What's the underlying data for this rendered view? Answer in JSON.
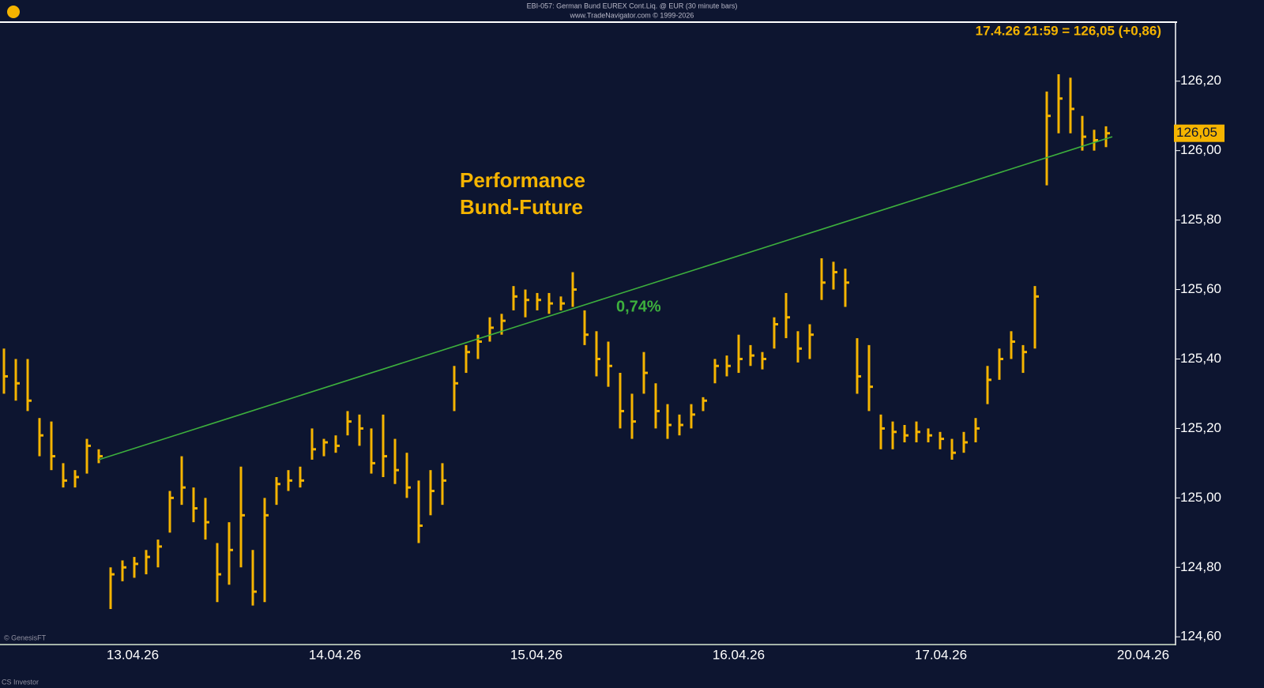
{
  "chart_data": {
    "type": "hlc",
    "title": "EBI-057:  German Bund EUREX Cont.Liq. @ EUR  (30 minute bars)",
    "subtitle": "www.TradeNavigator.com © 1999-2026",
    "header_quote": "17.4.26 21:59 = 126,05 (+0,86)",
    "annotation": "Performance\nBund-Future",
    "credit": "© GenesisFT",
    "footer": "CS Investor",
    "color": "#f5b400",
    "xtick_labels": [
      "13.04.26",
      "14.04.26",
      "15.04.26",
      "16.04.26",
      "17.04.26",
      "20.04.26"
    ],
    "ylim": [
      124.58,
      126.37
    ],
    "yticks": [
      {
        "value": 124.6,
        "label": "124,60"
      },
      {
        "value": 124.8,
        "label": "124,80"
      },
      {
        "value": 125.0,
        "label": "125,00"
      },
      {
        "value": 125.2,
        "label": "125,20"
      },
      {
        "value": 125.4,
        "label": "125,40"
      },
      {
        "value": 125.6,
        "label": "125,60"
      },
      {
        "value": 125.8,
        "label": "125,80"
      },
      {
        "value": 126.0,
        "label": "126,00"
      },
      {
        "value": 126.2,
        "label": "126,20"
      }
    ],
    "last_price": {
      "value": 126.05,
      "label": "126,05"
    },
    "trendline": {
      "values": [
        125.11,
        126.04
      ],
      "label": "0,74%",
      "color": "#3db03d"
    },
    "high": [
      125.43,
      125.4,
      125.4,
      125.23,
      125.22,
      125.1,
      125.08,
      125.17,
      125.14,
      124.8,
      124.82,
      124.83,
      124.85,
      124.88,
      125.02,
      125.12,
      125.03,
      125.0,
      124.87,
      124.93,
      125.09,
      124.85,
      125.0,
      125.06,
      125.08,
      125.09,
      125.2,
      125.17,
      125.18,
      125.25,
      125.24,
      125.2,
      125.24,
      125.17,
      125.13,
      125.05,
      125.08,
      125.1,
      125.38,
      125.44,
      125.47,
      125.52,
      125.53,
      125.61,
      125.6,
      125.59,
      125.59,
      125.58,
      125.65,
      125.54,
      125.48,
      125.45,
      125.36,
      125.3,
      125.42,
      125.33,
      125.27,
      125.24,
      125.27,
      125.29,
      125.4,
      125.41,
      125.47,
      125.44,
      125.42,
      125.52,
      125.59,
      125.48,
      125.5,
      125.69,
      125.68,
      125.66,
      125.46,
      125.44,
      125.24,
      125.22,
      125.21,
      125.22,
      125.2,
      125.19,
      125.17,
      125.19,
      125.23,
      125.38,
      125.43,
      125.48,
      125.44,
      125.61,
      126.17,
      126.22,
      126.21,
      126.1,
      126.06,
      126.07
    ],
    "low": [
      125.3,
      125.28,
      125.25,
      125.12,
      125.08,
      125.03,
      125.03,
      125.07,
      125.1,
      124.68,
      124.76,
      124.77,
      124.78,
      124.8,
      124.9,
      124.98,
      124.93,
      124.88,
      124.7,
      124.75,
      124.8,
      124.69,
      124.7,
      124.98,
      125.02,
      125.03,
      125.11,
      125.12,
      125.13,
      125.18,
      125.15,
      125.07,
      125.06,
      125.04,
      125.0,
      124.87,
      124.95,
      124.98,
      125.25,
      125.36,
      125.4,
      125.45,
      125.47,
      125.54,
      125.52,
      125.54,
      125.53,
      125.54,
      125.55,
      125.44,
      125.35,
      125.32,
      125.2,
      125.17,
      125.3,
      125.2,
      125.17,
      125.18,
      125.2,
      125.25,
      125.33,
      125.35,
      125.36,
      125.38,
      125.37,
      125.43,
      125.46,
      125.39,
      125.4,
      125.57,
      125.6,
      125.55,
      125.3,
      125.25,
      125.14,
      125.14,
      125.16,
      125.16,
      125.16,
      125.14,
      125.11,
      125.13,
      125.16,
      125.27,
      125.34,
      125.4,
      125.36,
      125.43,
      125.9,
      126.05,
      126.05,
      126.0,
      126.0,
      126.01
    ],
    "close": [
      125.35,
      125.33,
      125.28,
      125.18,
      125.12,
      125.05,
      125.06,
      125.15,
      125.12,
      124.78,
      124.8,
      124.81,
      124.83,
      124.86,
      125.0,
      125.03,
      124.97,
      124.93,
      124.78,
      124.85,
      124.95,
      124.73,
      124.95,
      125.04,
      125.05,
      125.05,
      125.14,
      125.16,
      125.15,
      125.22,
      125.2,
      125.1,
      125.12,
      125.08,
      125.03,
      124.92,
      125.02,
      125.05,
      125.33,
      125.42,
      125.45,
      125.49,
      125.51,
      125.58,
      125.57,
      125.57,
      125.56,
      125.56,
      125.6,
      125.47,
      125.4,
      125.38,
      125.25,
      125.22,
      125.36,
      125.25,
      125.21,
      125.21,
      125.24,
      125.28,
      125.38,
      125.38,
      125.4,
      125.41,
      125.4,
      125.5,
      125.52,
      125.43,
      125.47,
      125.62,
      125.65,
      125.62,
      125.35,
      125.32,
      125.2,
      125.19,
      125.18,
      125.19,
      125.18,
      125.17,
      125.13,
      125.16,
      125.2,
      125.34,
      125.4,
      125.45,
      125.42,
      125.58,
      126.1,
      126.15,
      126.12,
      126.04,
      126.03,
      126.05
    ]
  }
}
